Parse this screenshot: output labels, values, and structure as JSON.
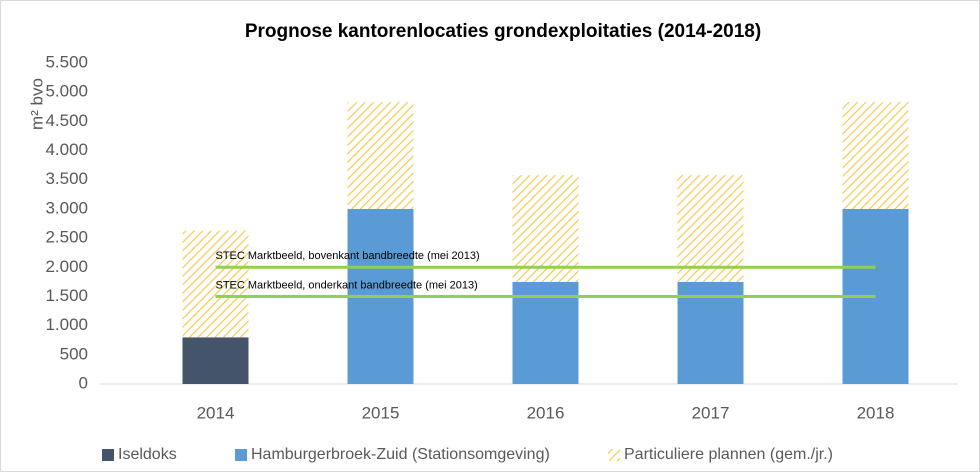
{
  "chart_data": {
    "type": "bar",
    "stacked": true,
    "title": "Prognose kantorenlocaties grondexploitaties (2014-2018)",
    "y_label": "m² bvo",
    "categories": [
      "2014",
      "2015",
      "2016",
      "2017",
      "2018"
    ],
    "series": [
      {
        "name": "Iseldoks",
        "color": "#44546a",
        "values": [
          800,
          0,
          0,
          0,
          0
        ]
      },
      {
        "name": "Hamburgerbroek-Zuid (Stationsomgeving)",
        "color": "#5b9bd5",
        "values": [
          0,
          3000,
          1750,
          1750,
          3000
        ]
      },
      {
        "name": "Particuliere plannen (gem./jr.)",
        "color": "#f2c744",
        "pattern": "hatch",
        "values": [
          1830,
          1830,
          1830,
          1830,
          1830
        ]
      }
    ],
    "reference_lines": [
      {
        "label": "STEC Marktbeeld, bovenkant bandbreedte (mei 2013)",
        "value": 2000,
        "color": "#92d050"
      },
      {
        "label": "STEC Marktbeeld, onderkant bandbreedte (mei 2013)",
        "value": 1500,
        "color": "#92d050"
      }
    ],
    "ylim": [
      0,
      5500
    ],
    "yticks": [
      0,
      500,
      {
        "value": 1000,
        "label": "1.000"
      },
      {
        "value": 1500,
        "label": "1.500"
      },
      {
        "value": 2000,
        "label": "2.000"
      },
      {
        "value": 2500,
        "label": "2.500"
      },
      {
        "value": 3000,
        "label": "3.000"
      },
      {
        "value": 3500,
        "label": "3.500"
      },
      {
        "value": 4000,
        "label": "4.000"
      },
      {
        "value": 4500,
        "label": "4.500"
      },
      {
        "value": 5000,
        "label": "5.000"
      },
      {
        "value": 5500,
        "label": "5.500"
      }
    ],
    "grid": false,
    "legend": "bottom"
  }
}
